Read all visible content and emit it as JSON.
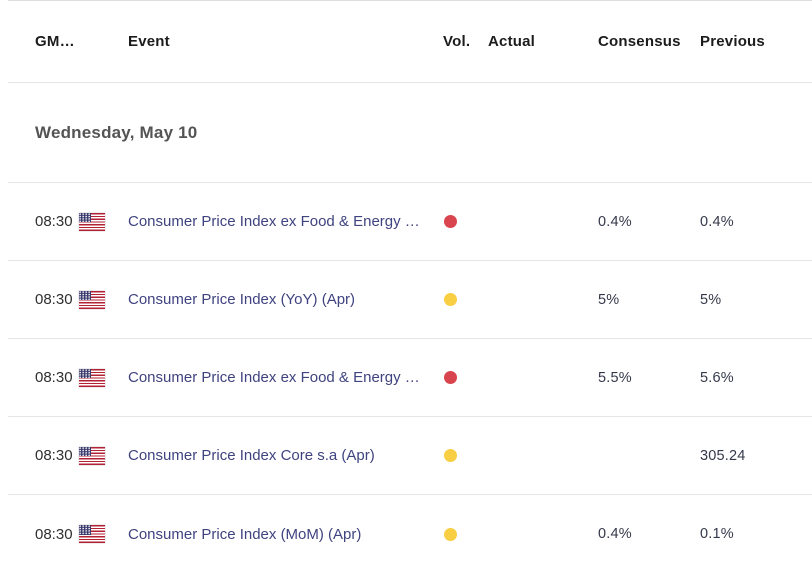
{
  "header": {
    "columns": [
      {
        "id": "gmt",
        "label": "GM…"
      },
      {
        "id": "event",
        "label": "Event"
      },
      {
        "id": "vol",
        "label": "Vol."
      },
      {
        "id": "actual",
        "label": "Actual"
      },
      {
        "id": "consensus",
        "label": "Consensus"
      },
      {
        "id": "previous",
        "label": "Previous"
      }
    ]
  },
  "date_section": {
    "label": "Wednesday, May 10"
  },
  "rows": [
    {
      "time": "08:30",
      "flag_icon": "us-flag-icon",
      "event": "Consumer Price Index ex Food & Energy …",
      "volatility": "high",
      "vol_color": "#D9454E",
      "actual": "",
      "consensus": "0.4%",
      "previous": "0.4%"
    },
    {
      "time": "08:30",
      "flag_icon": "us-flag-icon",
      "event": "Consumer Price Index (YoY) (Apr)",
      "volatility": "medium",
      "vol_color": "#F8CE42",
      "actual": "",
      "consensus": "5%",
      "previous": "5%"
    },
    {
      "time": "08:30",
      "flag_icon": "us-flag-icon",
      "event": "Consumer Price Index ex Food & Energy …",
      "volatility": "high",
      "vol_color": "#D9454E",
      "actual": "",
      "consensus": "5.5%",
      "previous": "5.6%"
    },
    {
      "time": "08:30",
      "flag_icon": "us-flag-icon",
      "event": "Consumer Price Index Core s.a (Apr)",
      "volatility": "medium",
      "vol_color": "#F8CE42",
      "actual": "",
      "consensus": "",
      "previous": "305.24"
    },
    {
      "time": "08:30",
      "flag_icon": "us-flag-icon",
      "event": "Consumer Price Index (MoM) (Apr)",
      "volatility": "medium",
      "vol_color": "#F8CE42",
      "actual": "",
      "consensus": "0.4%",
      "previous": "0.1%"
    }
  ],
  "colors": {
    "high_volatility_dot": "#D9454E",
    "medium_volatility_dot": "#F8CE42",
    "event_link_text": "#3F437F",
    "row_border": "#E6E6E6",
    "flag_red": "#B22234",
    "flag_blue": "#3C3B6E"
  }
}
